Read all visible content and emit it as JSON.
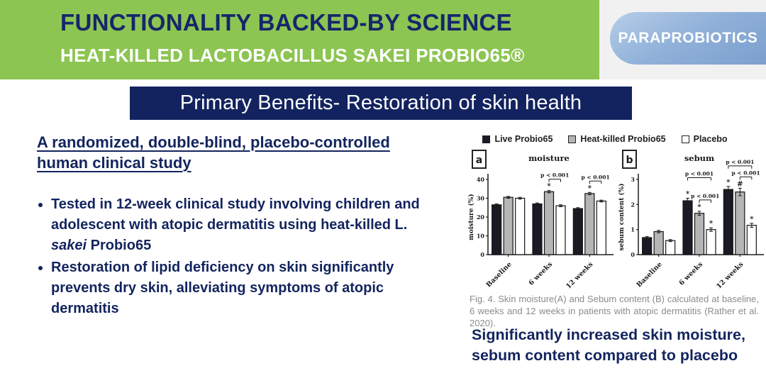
{
  "header": {
    "title": "FUNCTIONALITY BACKED-BY SCIENCE",
    "subtitle": "HEAT-KILLED LACTOBACILLUS SAKEI PROBIO65®",
    "badge": "PARAPROBIOTICS"
  },
  "banner": {
    "text": "Primary Benefits- Restoration of skin health"
  },
  "study": {
    "heading": "A randomized, double-blind, placebo-controlled human clinical study",
    "bullets": [
      {
        "pre": "Tested in 12-week clinical study involving children and adolescent with atopic dermatitis using heat-killed L. ",
        "italic": "sakei",
        "post": " Probio65"
      },
      {
        "pre": "Restoration of lipid deficiency on skin significantly prevents dry skin, alleviating symptoms of atopic dermatitis",
        "italic": "",
        "post": ""
      }
    ]
  },
  "figure": {
    "legend": [
      {
        "label": "Live Probio65",
        "fill": "#1a1a24",
        "border": "#1a1a24"
      },
      {
        "label": "Heat-killed Probio65",
        "fill": "#b5b5b5",
        "border": "#222222"
      },
      {
        "label": "Placebo",
        "fill": "#ffffff",
        "border": "#222222"
      }
    ],
    "caption": "Fig. 4. Skin moisture(A) and Sebum content (B) calculated at baseline, 6 weeks and 12 weeks in patients with atopic dermatitis (Rather et al. 2020).",
    "conclusion": "Significantly increased skin moisture, sebum content compared to placebo"
  },
  "colors": {
    "header_green": "#8cc552",
    "navy_text": "#13245e",
    "banner_bg": "#13235f",
    "badge_blue_top": "#b6cde8",
    "badge_blue_bottom": "#7b9fce",
    "caption_gray": "#8b8b8b"
  },
  "chart_data": [
    {
      "type": "bar",
      "panel": "a",
      "title": "moisture",
      "ylabel": "moisture (%)",
      "ylim": [
        0,
        40
      ],
      "yticks": [
        0,
        10,
        20,
        30,
        40
      ],
      "categories": [
        "Baseline",
        "6 weeks",
        "12 weeks"
      ],
      "series": [
        {
          "name": "Live Probio65",
          "values": [
            26.5,
            27,
            24.5
          ],
          "err": [
            0.5,
            0.5,
            0.5
          ]
        },
        {
          "name": "Heat-killed Probio65",
          "values": [
            30.5,
            33.5,
            32.5
          ],
          "err": [
            0.5,
            0.6,
            0.6
          ]
        },
        {
          "name": "Placebo",
          "values": [
            30,
            26,
            28.5
          ],
          "err": [
            0.5,
            0.5,
            0.5
          ]
        }
      ],
      "marks": [
        [
          "",
          "",
          ""
        ],
        [
          "",
          "*",
          "*"
        ],
        [
          "",
          "",
          ""
        ]
      ],
      "significance": [
        {
          "group": 1,
          "bars": [
            1,
            2
          ],
          "label": "p < 0.001",
          "level": 0
        },
        {
          "group": 2,
          "bars": [
            1,
            2
          ],
          "label": "p < 0.001",
          "level": 0
        }
      ],
      "legend_position": "top",
      "grid": false
    },
    {
      "type": "bar",
      "panel": "b",
      "title": "sebum",
      "ylabel": "sebum content (%)",
      "ylim": [
        0,
        3
      ],
      "yticks": [
        0,
        1,
        2,
        3
      ],
      "categories": [
        "Baseline",
        "6 weeks",
        "12 weeks"
      ],
      "series": [
        {
          "name": "Live Probio65",
          "values": [
            0.68,
            2.15,
            2.6
          ],
          "err": [
            0.04,
            0.1,
            0.12
          ]
        },
        {
          "name": "Heat-killed Probio65",
          "values": [
            0.92,
            1.65,
            2.5
          ],
          "err": [
            0.05,
            0.08,
            0.15
          ]
        },
        {
          "name": "Placebo",
          "values": [
            0.56,
            1.0,
            1.17
          ],
          "err": [
            0.04,
            0.07,
            0.08
          ]
        }
      ],
      "marks": [
        [
          "",
          "*",
          "*"
        ],
        [
          "",
          "*",
          "#"
        ],
        [
          "",
          "*",
          "*"
        ]
      ],
      "significance": [
        {
          "group": 1,
          "bars": [
            1,
            2
          ],
          "label": "p < 0.001",
          "level": 0
        },
        {
          "group": 1,
          "bars": [
            0,
            2
          ],
          "label": "p < 0.001",
          "level": 1
        },
        {
          "group": 2,
          "bars": [
            1,
            2
          ],
          "label": "p < 0.001",
          "level": 0
        },
        {
          "group": 2,
          "bars": [
            0,
            2
          ],
          "label": "p < 0.001",
          "level": 1
        }
      ],
      "legend_position": "top",
      "grid": false
    }
  ]
}
